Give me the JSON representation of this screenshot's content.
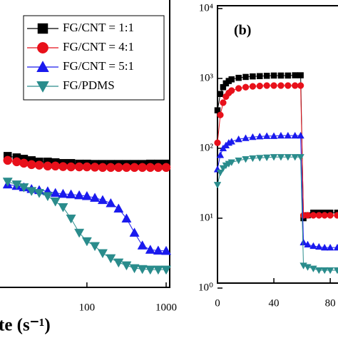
{
  "chart_data": [
    {
      "type": "line",
      "log_x": true,
      "x_label": "te (s⁻¹)",
      "xlim": [
        8,
        1000
      ],
      "xticks": [
        100,
        1000
      ],
      "ylim": [
        0,
        100
      ],
      "x": [
        10,
        13,
        16,
        20,
        25,
        32,
        40,
        50,
        63,
        80,
        100,
        126,
        158,
        200,
        251,
        316,
        398,
        501,
        631,
        794,
        1000
      ],
      "legend": "upper right",
      "series": [
        {
          "name": "FG/CNT = 1:1",
          "color": "#000000",
          "marker": "square",
          "values": [
            45,
            44.5,
            44,
            43.5,
            43,
            43,
            42.8,
            42.5,
            42.5,
            42.3,
            42.3,
            42.2,
            42.2,
            42.2,
            42.2,
            42.2,
            42.2,
            42.2,
            42.3,
            42.3,
            42.3
          ]
        },
        {
          "name": "FG/CNT = 4:1",
          "color": "#e8101a",
          "marker": "circle",
          "values": [
            43.5,
            43,
            42.5,
            42,
            41.8,
            41.5,
            41.5,
            41.3,
            41.2,
            41.2,
            41.2,
            41.1,
            41,
            41,
            41,
            41,
            41,
            41,
            41,
            41,
            41
          ]
        },
        {
          "name": "FG/CNT = 5:1",
          "color": "#1a1aee",
          "marker": "triangle",
          "values": [
            35,
            34.5,
            34,
            33.4,
            33,
            32.6,
            32,
            31.7,
            31.5,
            31.2,
            30.9,
            30.3,
            29.5,
            28.4,
            26.5,
            23,
            18,
            13.5,
            12,
            11.7,
            11.6
          ]
        },
        {
          "name": "FG/PDMS",
          "color": "#2a8c8c",
          "marker": "triangle-down",
          "values": [
            36,
            35,
            34,
            32.7,
            32,
            30.9,
            29,
            27,
            23,
            18,
            15,
            13.3,
            10.8,
            9,
            7.5,
            6.5,
            5.5,
            5.2,
            5,
            5,
            5
          ]
        }
      ]
    },
    {
      "type": "line",
      "log_y": true,
      "title": "(b)",
      "xlim": [
        0,
        85
      ],
      "xticks": [
        0,
        40,
        80
      ],
      "ylim": [
        1,
        10000
      ],
      "yticks": [
        {
          "value": 1,
          "label": "10⁰"
        },
        {
          "value": 10,
          "label": "10¹"
        },
        {
          "value": 100,
          "label": "10²"
        },
        {
          "value": 1000,
          "label": "10³"
        },
        {
          "value": 10000,
          "label": "10⁴"
        }
      ],
      "x": [
        0,
        2,
        4,
        6,
        8,
        10,
        15,
        20,
        25,
        30,
        35,
        40,
        45,
        50,
        55,
        59,
        61,
        64,
        68,
        72,
        76,
        80,
        85
      ],
      "series": [
        {
          "color": "#000000",
          "marker": "square",
          "values": [
            350,
            600,
            750,
            850,
            920,
            970,
            1020,
            1050,
            1070,
            1080,
            1090,
            1100,
            1100,
            1100,
            1110,
            1110,
            10,
            11,
            12,
            12,
            12,
            12,
            12
          ]
        },
        {
          "color": "#e8101a",
          "marker": "circle",
          "values": [
            120,
            300,
            450,
            550,
            620,
            670,
            720,
            750,
            770,
            780,
            790,
            790,
            790,
            790,
            790,
            790,
            11,
            11,
            11,
            11,
            11,
            11,
            11
          ]
        },
        {
          "color": "#1a1aee",
          "marker": "triangle",
          "values": [
            50,
            80,
            100,
            110,
            120,
            125,
            135,
            140,
            145,
            148,
            150,
            150,
            152,
            152,
            152,
            152,
            4.5,
            4.2,
            4,
            3.9,
            3.8,
            3.8,
            3.8
          ]
        },
        {
          "color": "#2a8c8c",
          "marker": "triangle-down",
          "values": [
            30,
            45,
            52,
            57,
            60,
            63,
            67,
            70,
            72,
            73,
            74,
            75,
            75,
            75,
            75,
            75,
            2.1,
            2,
            1.9,
            1.8,
            1.8,
            1.8,
            1.8
          ]
        }
      ]
    }
  ]
}
